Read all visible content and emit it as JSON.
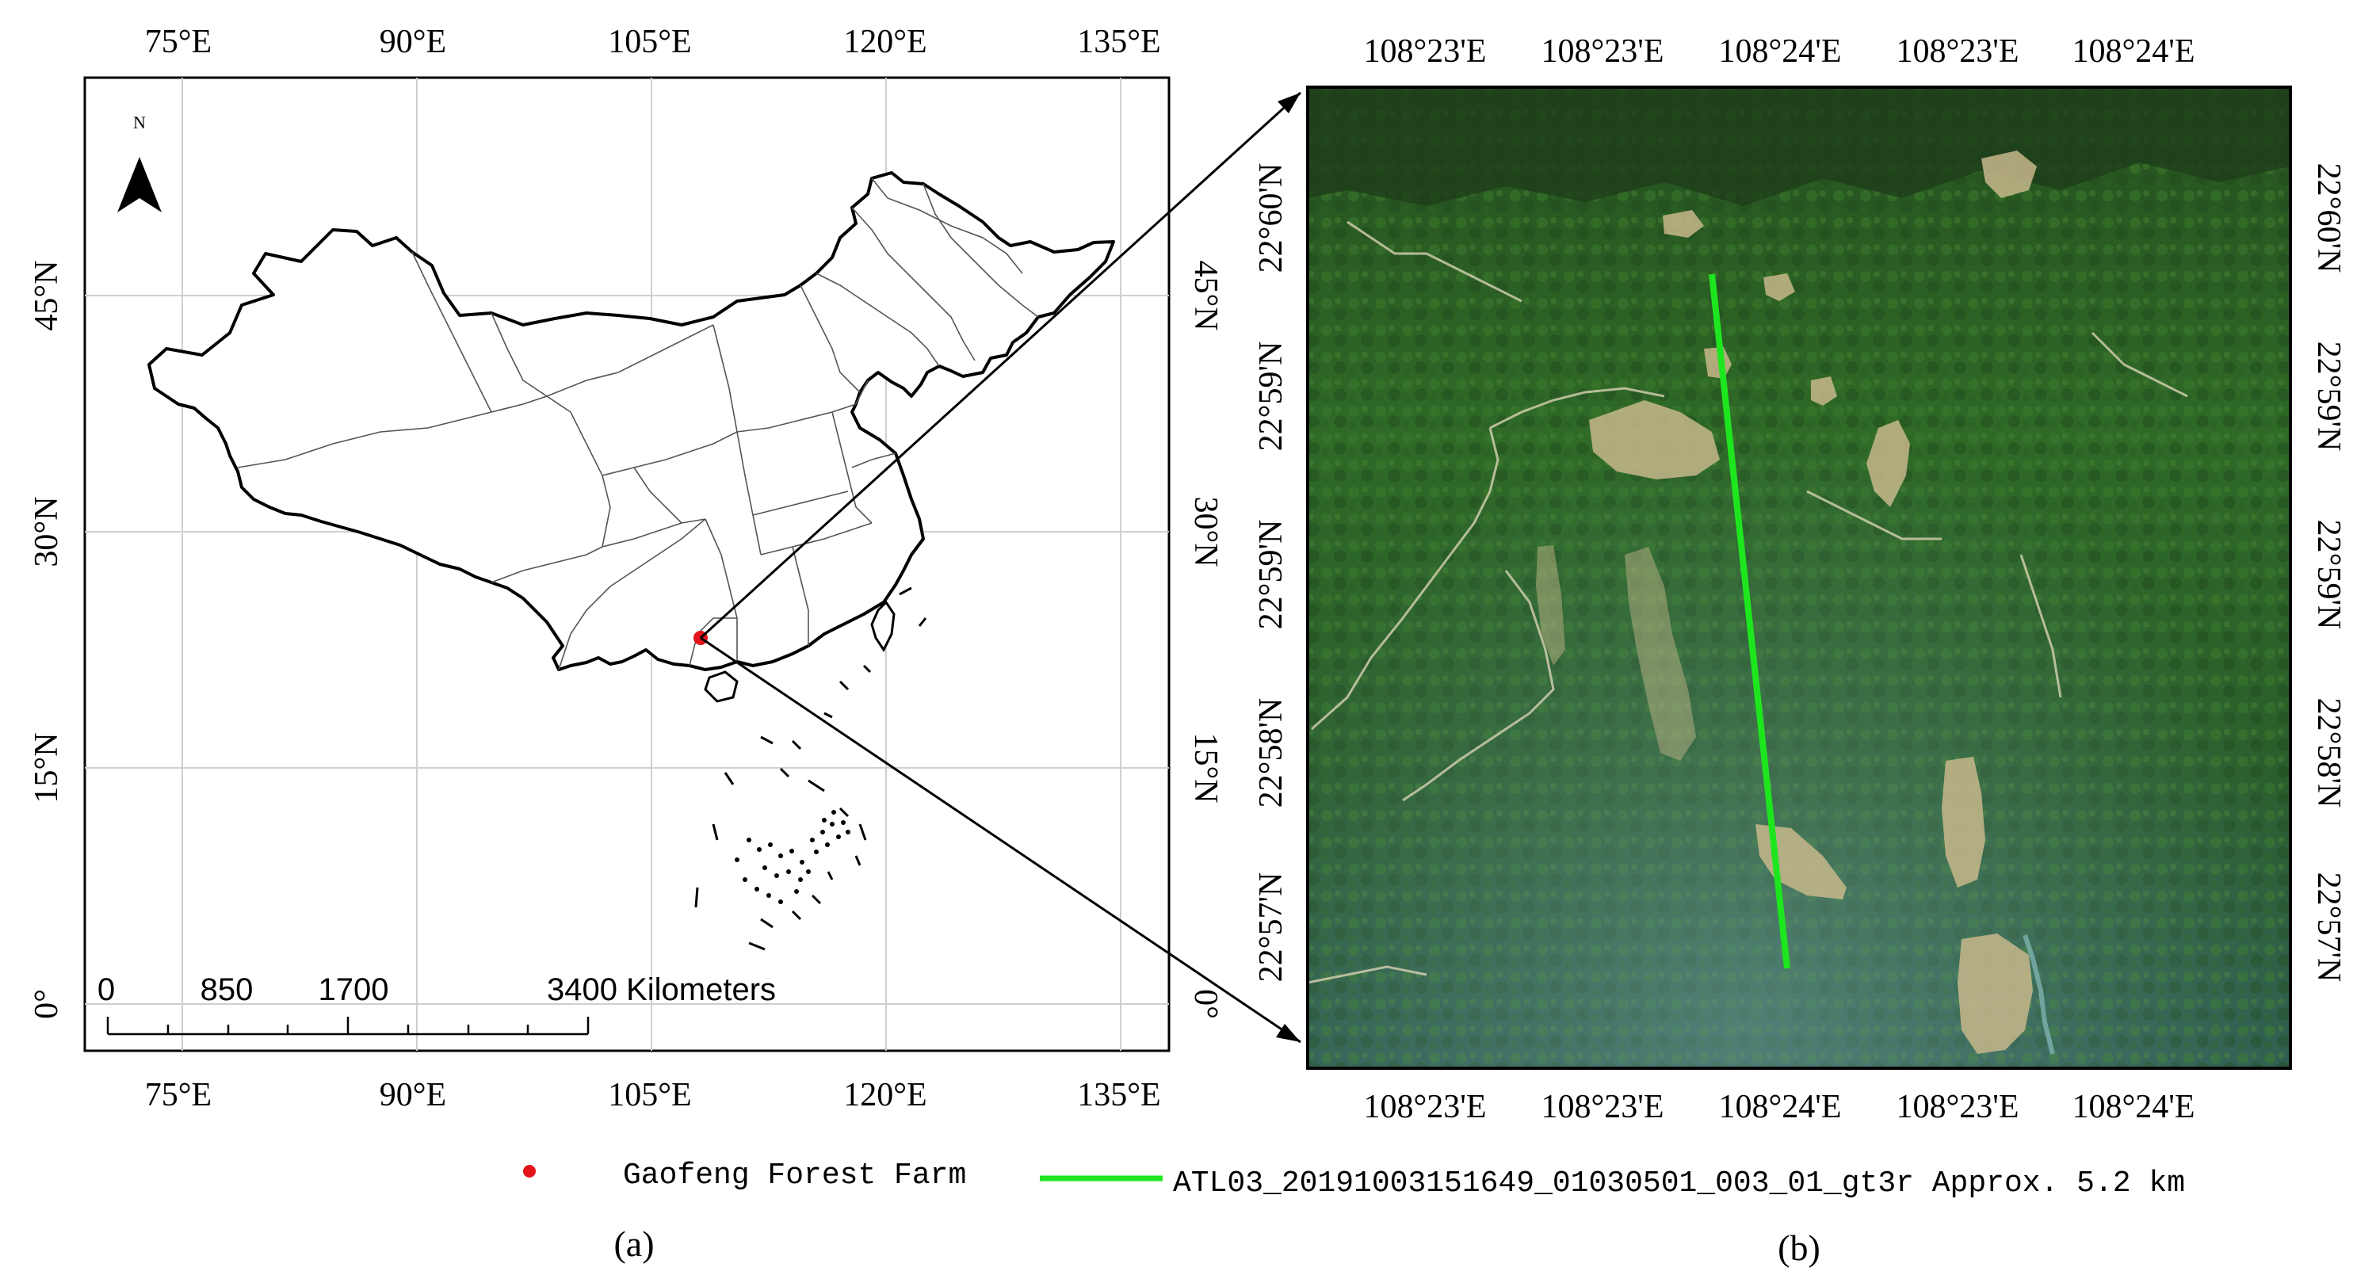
{
  "panel_a": {
    "caption": "(a)",
    "lon_labels": [
      "75°E",
      "90°E",
      "105°E",
      "120°E",
      "135°E"
    ],
    "lat_labels": [
      "45°N",
      "30°N",
      "15°N",
      "0°"
    ],
    "north_label": "N",
    "scale": {
      "ticks": [
        "0",
        "850",
        "1700",
        "3400 Kilometers"
      ]
    },
    "farm_point_color": "#e3141c"
  },
  "panel_b": {
    "caption": "(b)",
    "top_lon_labels": [
      "108°23'E",
      "108°23'E",
      "108°24'E",
      "108°23'E",
      "108°24'E"
    ],
    "bottom_lon_labels": [
      "108°23'E",
      "108°23'E",
      "108°24'E",
      "108°23'E",
      "108°24'E"
    ],
    "lat_labels": [
      "22°60'N",
      "22°59'N",
      "22°59'N",
      "22°58'N",
      "22°57'N"
    ],
    "track_color": "#1ee61e"
  },
  "legend": {
    "farm_label": "Gaofeng Forest Farm",
    "track_label": "ATL03_20191003151649_01030501_003_01_gt3r Approx. 5.2 km",
    "farm_color": "#e3141c",
    "track_color": "#1ee61e"
  }
}
